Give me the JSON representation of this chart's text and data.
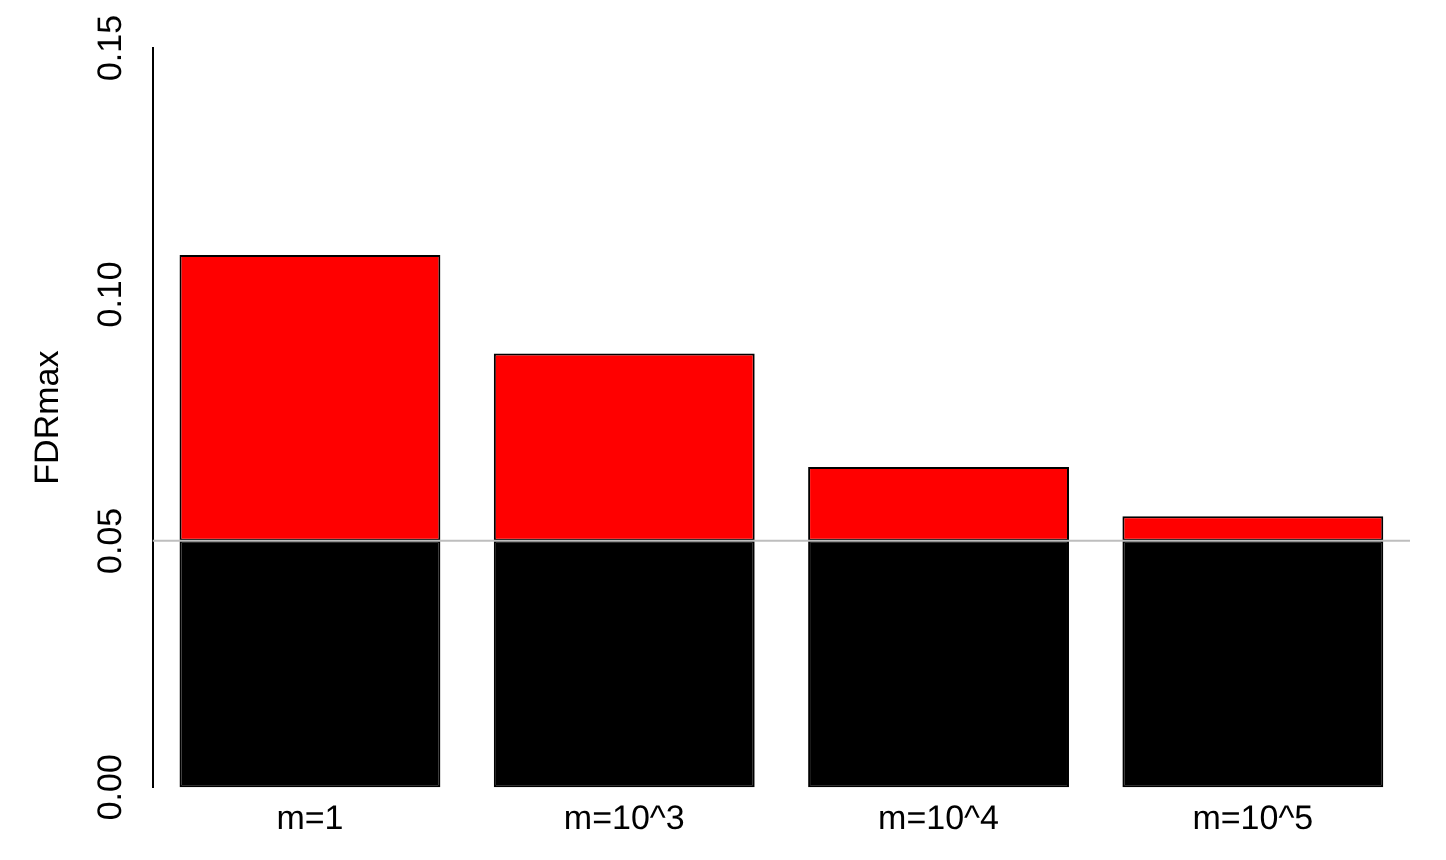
{
  "chart_data": {
    "type": "bar",
    "stacked": true,
    "ylabel": "FDRmax",
    "categories": [
      "m=1",
      "m=10^3",
      "m=10^4",
      "m=10^5"
    ],
    "series": [
      {
        "color": "#000000",
        "values": [
          0.05,
          0.05,
          0.05,
          0.05
        ]
      },
      {
        "color": "#ff0000",
        "values": [
          0.058,
          0.038,
          0.015,
          0.005
        ]
      }
    ],
    "ylim": [
      0,
      0.15
    ],
    "yticks": [
      {
        "value": 0,
        "label": "0.00"
      },
      {
        "value": 0.05,
        "label": "0.05"
      },
      {
        "value": 0.1,
        "label": "0.10"
      },
      {
        "value": 0.15,
        "label": "0.15"
      }
    ],
    "ref_lines": [
      {
        "axis": "y",
        "value": 0.05,
        "color": "#bebebe"
      }
    ],
    "grid": false,
    "legend": false
  }
}
